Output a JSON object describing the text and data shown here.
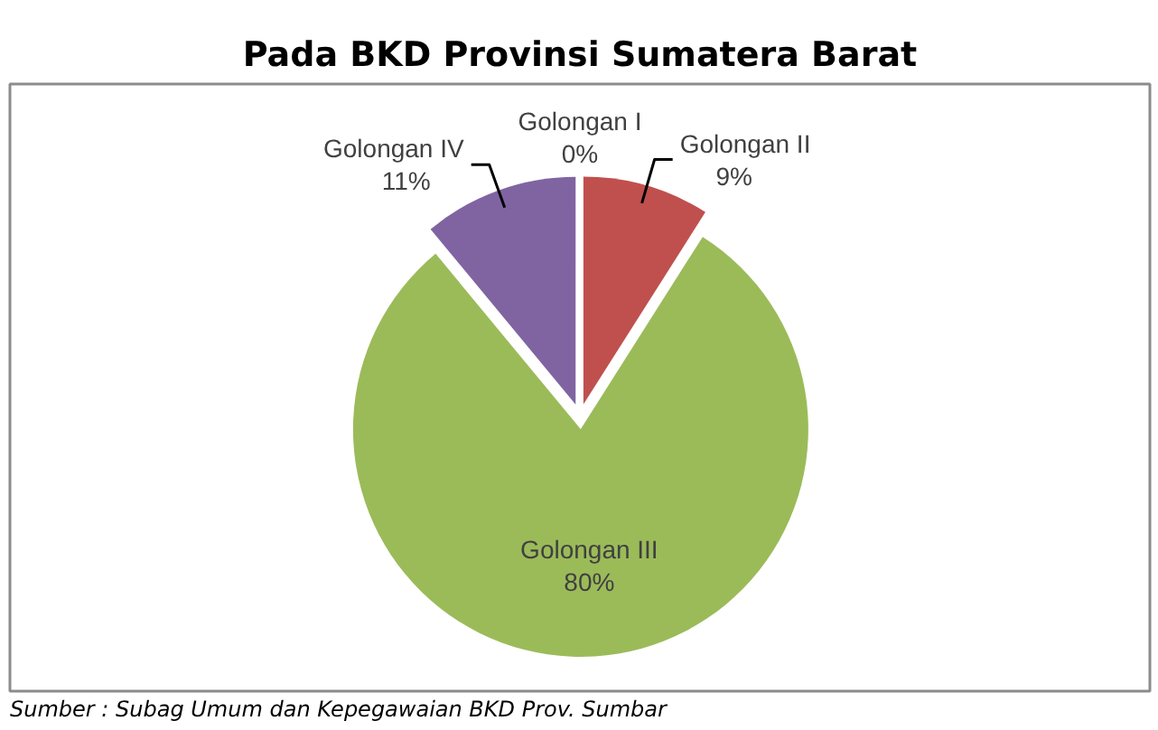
{
  "chart_data": {
    "type": "pie",
    "title": "Pada BKD Provinsi Sumatera Barat",
    "categories": [
      "Golongan I",
      "Golongan II",
      "Golongan III",
      "Golongan IV"
    ],
    "values": [
      0,
      9,
      80,
      11
    ],
    "colors": [
      "#4f81bd",
      "#c0504d",
      "#9bbb59",
      "#8064a2"
    ],
    "value_labels": [
      "0%",
      "9%",
      "80%",
      "11%"
    ],
    "annotations": [
      "Sumber : Subag Umum dan Kepegawaian BKD Prov. Sumbar"
    ]
  }
}
